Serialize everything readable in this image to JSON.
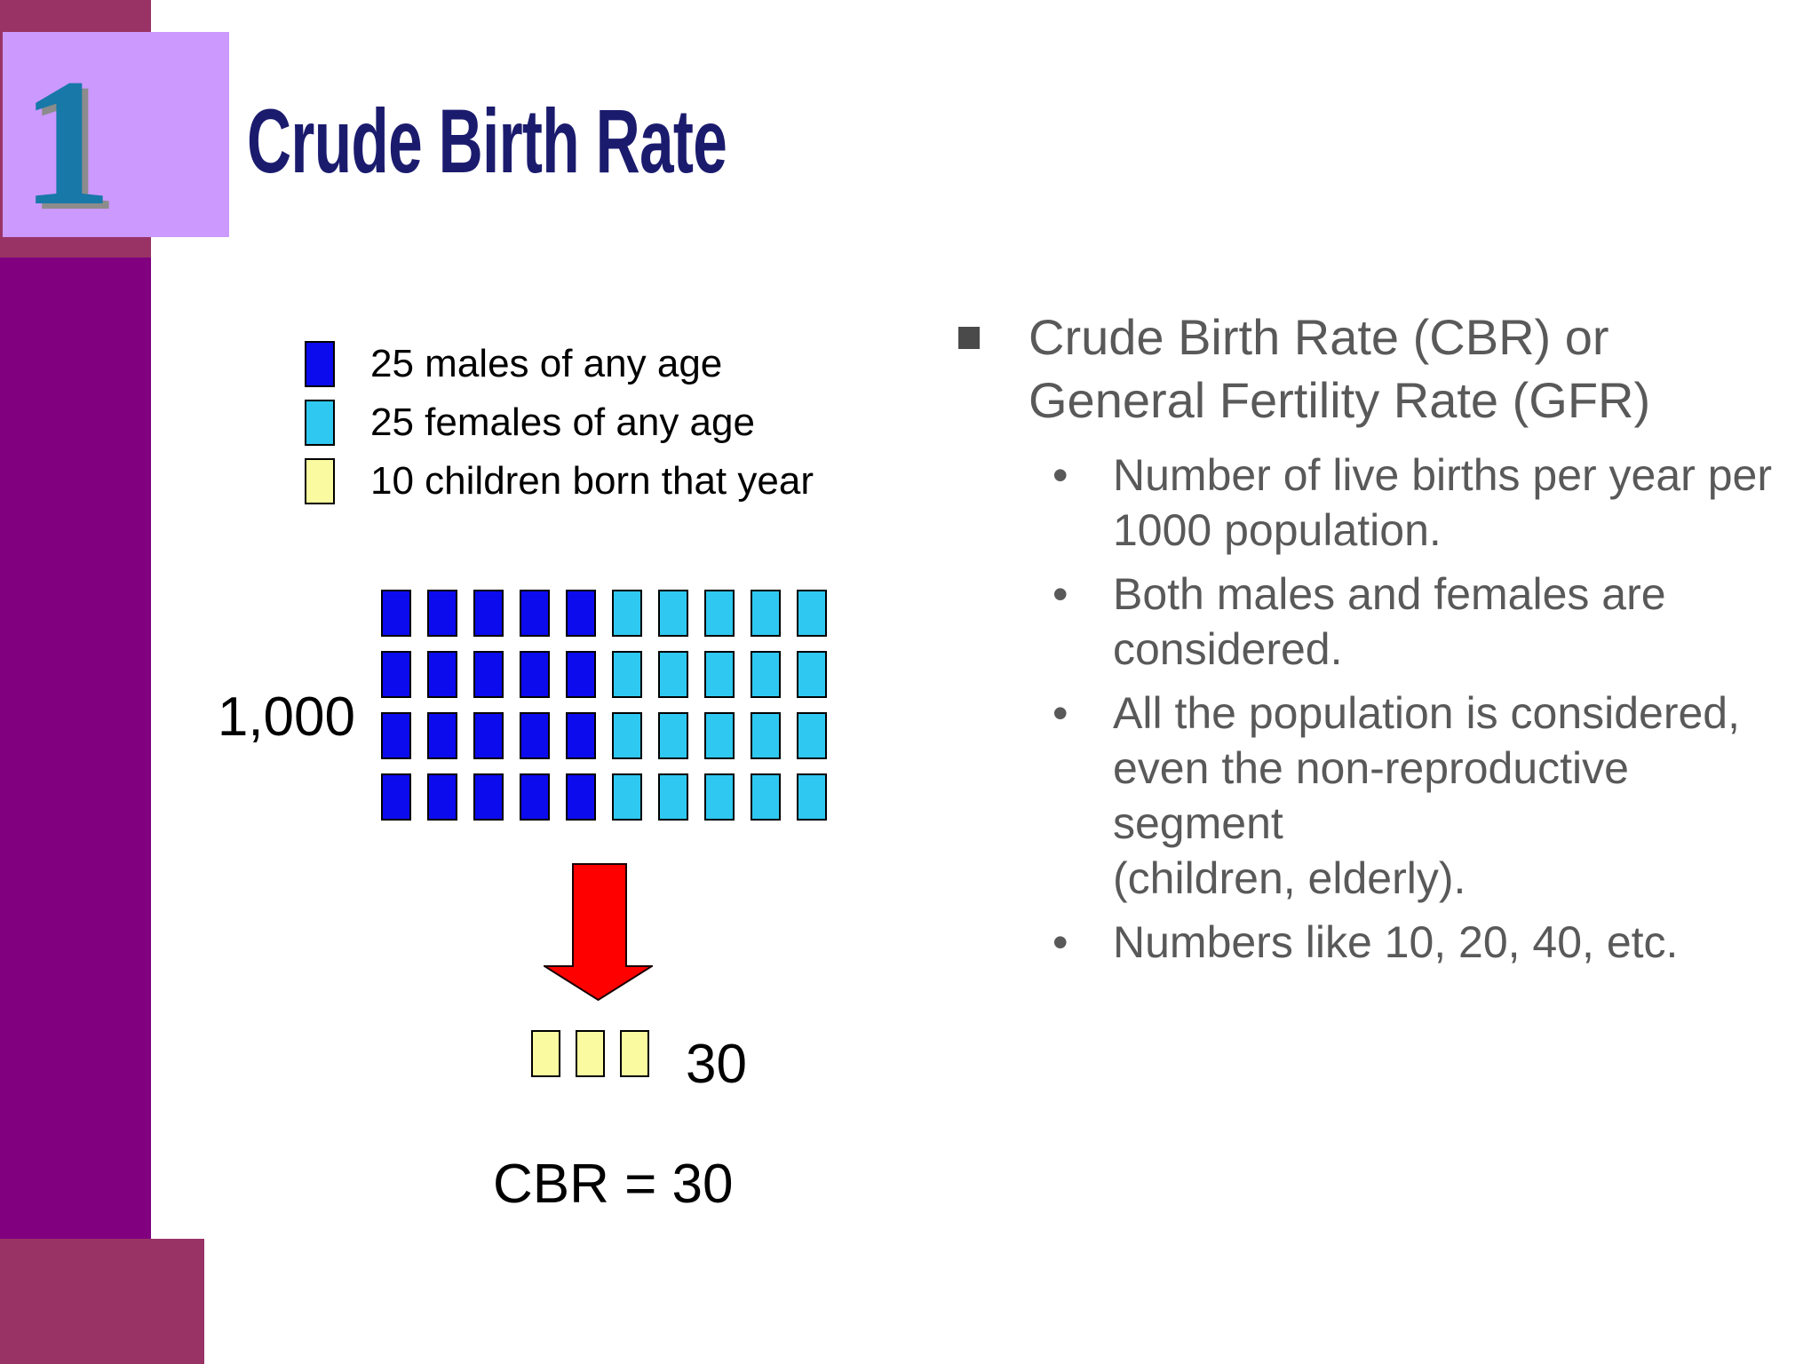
{
  "slide": {
    "number": "1",
    "title": "Crude Birth Rate"
  },
  "colors": {
    "male_blue": "#0b0bee",
    "female_cyan": "#2fc8f0",
    "birth_yellow": "#fafaa0",
    "arrow_red": "#ff0000",
    "band_raspberry": "#993366",
    "band_purple": "#800080",
    "band_lavender": "#cc99ff",
    "number_teal": "#1878a8",
    "title_navy": "#1b1b6e",
    "body_gray": "#595959"
  },
  "legend": {
    "items": [
      {
        "label": "25 males of any age",
        "color": "#0b0bee"
      },
      {
        "label": "25 females of any age",
        "color": "#2fc8f0"
      },
      {
        "label": "10 children born that year",
        "color": "#fafaa0"
      }
    ]
  },
  "diagram": {
    "population_label": "1,000",
    "grid": {
      "rows": 4,
      "cols": 10,
      "male_cols": 5,
      "male_color": "#0b0bee",
      "female_color": "#2fc8f0"
    },
    "births": {
      "count": 3,
      "color": "#fafaa0",
      "label": "30"
    },
    "result_label": "CBR = 30"
  },
  "right_column": {
    "heading": {
      "line1": "Crude Birth Rate (CBR) or",
      "line2": "General Fertility Rate (GFR)"
    },
    "bullet_glyph": "•",
    "bullets": [
      {
        "lines": {
          "l1": "Number of live births per year per",
          "l2": "1000 population."
        }
      },
      {
        "lines": {
          "l1": "Both males and females are",
          "l2": "considered."
        }
      },
      {
        "lines": {
          "l1": "All the population is considered,",
          "l2": "even the non-reproductive segment",
          "l3": "(children, elderly)."
        }
      },
      {
        "lines": {
          "l1": "Numbers like 10, 20, 40, etc."
        }
      }
    ]
  }
}
